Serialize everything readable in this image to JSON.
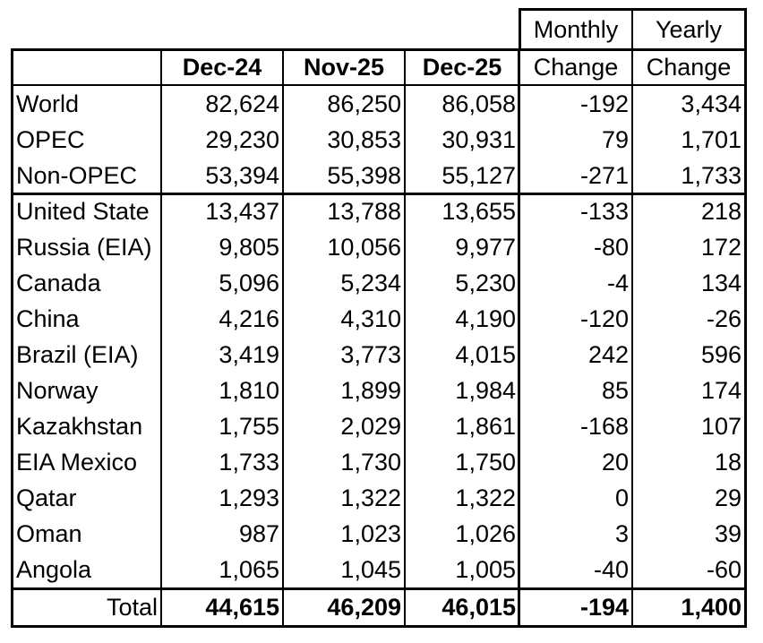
{
  "header": {
    "top": [
      "Monthly",
      "Yearly"
    ],
    "columns": [
      "Dec-24",
      "Nov-25",
      "Dec-25",
      "Change",
      "Change"
    ]
  },
  "table": {
    "rows": [
      [
        "World",
        "82,624",
        "86,250",
        "86,058",
        "-192",
        "3,434"
      ],
      [
        "OPEC",
        "29,230",
        "30,853",
        "30,931",
        "79",
        "1,701"
      ],
      [
        "Non-OPEC",
        "53,394",
        "55,398",
        "55,127",
        "-271",
        "1,733"
      ],
      [
        "United State",
        "13,437",
        "13,788",
        "13,655",
        "-133",
        "218"
      ],
      [
        "Russia (EIA)",
        "9,805",
        "10,056",
        "9,977",
        "-80",
        "172"
      ],
      [
        "Canada",
        "5,096",
        "5,234",
        "5,230",
        "-4",
        "134"
      ],
      [
        "China",
        "4,216",
        "4,310",
        "4,190",
        "-120",
        "-26"
      ],
      [
        "Brazil (EIA)",
        "3,419",
        "3,773",
        "4,015",
        "242",
        "596"
      ],
      [
        "Norway",
        "1,810",
        "1,899",
        "1,984",
        "85",
        "174"
      ],
      [
        "Kazakhstan",
        "1,755",
        "2,029",
        "1,861",
        "-168",
        "107"
      ],
      [
        "EIA Mexico",
        "1,733",
        "1,730",
        "1,750",
        "20",
        "18"
      ],
      [
        "Qatar",
        "1,293",
        "1,322",
        "1,322",
        "0",
        "29"
      ],
      [
        "Oman",
        "987",
        "1,023",
        "1,026",
        "3",
        "39"
      ],
      [
        "Angola",
        "1,065",
        "1,045",
        "1,005",
        "-40",
        "-60"
      ]
    ],
    "total": [
      "Total",
      "44,615",
      "46,209",
      "46,015",
      "-194",
      "1,400"
    ]
  }
}
